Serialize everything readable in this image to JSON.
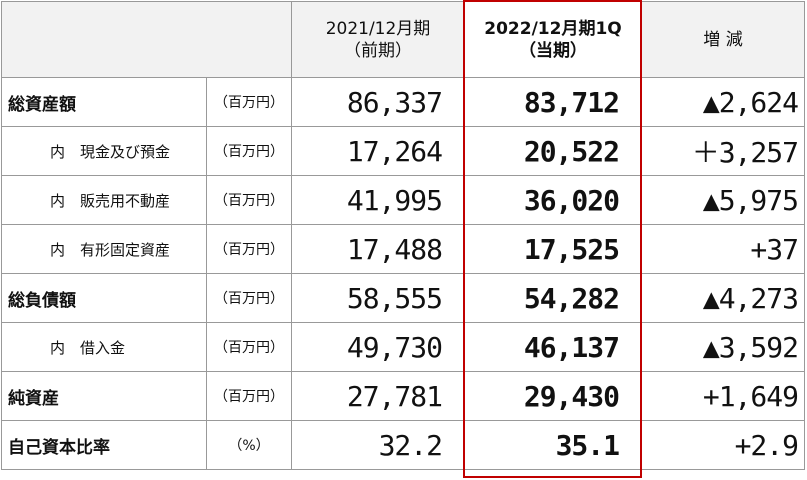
{
  "header": {
    "cells": [
      {
        "line1": "2021/12月期",
        "line2": "（前期）"
      },
      {
        "line1": "2022/12月期1Q",
        "line2": "（当期）"
      },
      {
        "line1": "増 減"
      }
    ]
  },
  "table": {
    "rows": [
      {
        "label": "総資産額",
        "indent": false,
        "unit": "（百万円）",
        "prev": "86,337",
        "current": "83,712",
        "change": "▲2,624"
      },
      {
        "label": "内　現金及び預金",
        "indent": true,
        "unit": "（百万円）",
        "prev": "17,264",
        "current": "20,522",
        "change": "＋3,257"
      },
      {
        "label": "内　販売用不動産",
        "indent": true,
        "unit": "（百万円）",
        "prev": "41,995",
        "current": "36,020",
        "change": "▲5,975"
      },
      {
        "label": "内　有形固定資産",
        "indent": true,
        "unit": "（百万円）",
        "prev": "17,488",
        "current": "17,525",
        "change": "+37"
      },
      {
        "label": "総負債額",
        "indent": false,
        "unit": "（百万円）",
        "prev": "58,555",
        "current": "54,282",
        "change": "▲4,273"
      },
      {
        "label": "内　借入金",
        "indent": true,
        "unit": "（百万円）",
        "prev": "49,730",
        "current": "46,137",
        "change": "▲3,592"
      },
      {
        "label": "純資産",
        "indent": false,
        "unit": "（百万円）",
        "prev": "27,781",
        "current": "29,430",
        "change": "+1,649"
      },
      {
        "label": "自己資本比率",
        "indent": false,
        "unit": "（%）",
        "prev": "32.2",
        "current": "35.1",
        "change": "+2.9"
      }
    ]
  }
}
